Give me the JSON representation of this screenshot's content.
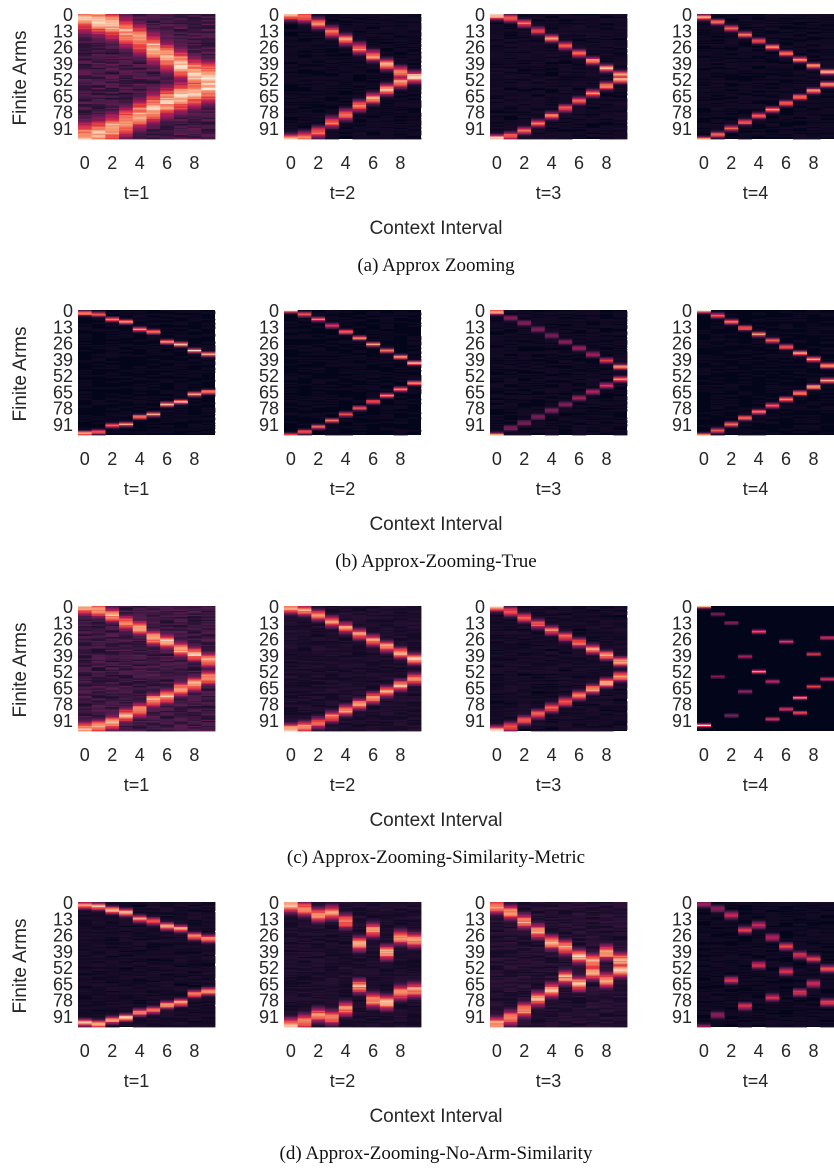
{
  "figure": {
    "ylabel": "Finite Arms",
    "xlabel": "Context Interval",
    "y_ticks": [
      "0",
      "13",
      "26",
      "39",
      "52",
      "65",
      "78",
      "91"
    ],
    "x_ticks": [
      "0",
      "2",
      "4",
      "6",
      "8"
    ],
    "panel_titles": [
      "t=1",
      "t=2",
      "t=3",
      "t=4"
    ],
    "colormap": [
      "#03051a",
      "#4c1d4b",
      "#a11a5b",
      "#e83f3f",
      "#f69c73",
      "#faebdd"
    ]
  },
  "chart_data": [
    {
      "type": "heatmap",
      "caption": "(a) Approx Zooming",
      "ylabel": "Finite Arms",
      "xlabel": "Context Interval",
      "n_rows": 100,
      "n_cols": 10,
      "y_tick_labels": [
        "0",
        "13",
        "26",
        "39",
        "52",
        "65",
        "78",
        "91"
      ],
      "x_tick_labels": [
        "0",
        "2",
        "4",
        "6",
        "8"
      ],
      "subplots": [
        {
          "title": "t=1",
          "peak_rows": [
            [
              2,
              98
            ],
            [
              5,
              96
            ],
            [
              8,
              92
            ],
            [
              14,
              86
            ],
            [
              20,
              80
            ],
            [
              27,
              75
            ],
            [
              34,
              70
            ],
            [
              40,
              66
            ],
            [
              47,
              62
            ],
            [
              50,
              58
            ]
          ],
          "peak_intensity": [
            0.85,
            0.85,
            0.85,
            0.8,
            0.8,
            0.85,
            0.85,
            0.9,
            0.9,
            0.9
          ],
          "width": 9,
          "background": 0.2
        },
        {
          "title": "t=2",
          "peak_rows": [
            [
              0,
              100
            ],
            [
              2,
              98
            ],
            [
              7,
              94
            ],
            [
              14,
              86
            ],
            [
              20,
              80
            ],
            [
              27,
              73
            ],
            [
              33,
              67
            ],
            [
              40,
              60
            ],
            [
              46,
              54
            ],
            [
              50,
              50
            ]
          ],
          "peak_intensity": [
            0.9,
            0.75,
            0.72,
            0.72,
            0.75,
            0.75,
            0.78,
            0.8,
            0.85,
            0.95
          ],
          "width": 3,
          "background": 0.04
        },
        {
          "title": "t=3",
          "peak_rows": [
            [
              1,
              99
            ],
            [
              3,
              97
            ],
            [
              7,
              93
            ],
            [
              13,
              87
            ],
            [
              19,
              81
            ],
            [
              25,
              75
            ],
            [
              31,
              69
            ],
            [
              37,
              63
            ],
            [
              43,
              57
            ],
            [
              48,
              52
            ]
          ],
          "peak_intensity": [
            0.95,
            0.7,
            0.65,
            0.65,
            0.7,
            0.7,
            0.7,
            0.75,
            0.8,
            0.85
          ],
          "width": 2,
          "background": 0.05
        },
        {
          "title": "t=4",
          "peak_rows": [
            [
              2,
              100
            ],
            [
              6,
              96
            ],
            [
              11,
              91
            ],
            [
              16,
              86
            ],
            [
              21,
              81
            ],
            [
              26,
              76
            ],
            [
              31,
              71
            ],
            [
              36,
              66
            ],
            [
              41,
              61
            ],
            [
              46,
              56
            ]
          ],
          "peak_intensity": [
            0.9,
            0.72,
            0.7,
            0.7,
            0.7,
            0.72,
            0.72,
            0.75,
            0.8,
            0.85
          ],
          "width": 1.5,
          "background": 0.04
        }
      ]
    },
    {
      "type": "heatmap",
      "caption": "(b) Approx-Zooming-True",
      "ylabel": "Finite Arms",
      "xlabel": "Context Interval",
      "n_rows": 100,
      "n_cols": 10,
      "y_tick_labels": [
        "0",
        "13",
        "26",
        "39",
        "52",
        "65",
        "78",
        "91"
      ],
      "x_tick_labels": [
        "0",
        "2",
        "4",
        "6",
        "8"
      ],
      "subplots": [
        {
          "title": "t=1",
          "peak_rows": [
            [
              2,
              98
            ],
            [
              3,
              97
            ],
            [
              7,
              92
            ],
            [
              9,
              91
            ],
            [
              15,
              85
            ],
            [
              17,
              83
            ],
            [
              25,
              75
            ],
            [
              27,
              73
            ],
            [
              32,
              67
            ],
            [
              35,
              65
            ]
          ],
          "peak_intensity": [
            0.85,
            0.75,
            0.7,
            0.75,
            0.8,
            0.85,
            0.85,
            0.85,
            0.85,
            0.85
          ],
          "width": 1.2,
          "background": 0.03
        },
        {
          "title": "t=2",
          "peak_rows": [
            [
              0,
              100
            ],
            [
              3,
              97
            ],
            [
              7,
              93
            ],
            [
              12,
              88
            ],
            [
              17,
              83
            ],
            [
              22,
              78
            ],
            [
              27,
              73
            ],
            [
              32,
              68
            ],
            [
              37,
              63
            ],
            [
              42,
              58
            ]
          ],
          "peak_intensity": [
            0.9,
            0.7,
            0.65,
            0.65,
            0.7,
            0.7,
            0.72,
            0.75,
            0.8,
            0.85
          ],
          "width": 1.2,
          "background": 0.03
        },
        {
          "title": "t=3",
          "peak_rows": [
            [
              1,
              100
            ],
            [
              6,
              94
            ],
            [
              10,
              90
            ],
            [
              15,
              85
            ],
            [
              20,
              80
            ],
            [
              25,
              75
            ],
            [
              30,
              70
            ],
            [
              35,
              65
            ],
            [
              40,
              60
            ],
            [
              45,
              55
            ]
          ],
          "peak_intensity": [
            0.95,
            0.35,
            0.35,
            0.35,
            0.35,
            0.35,
            0.4,
            0.45,
            0.55,
            0.75
          ],
          "width": 1.5,
          "background": 0.04
        },
        {
          "title": "t=4",
          "peak_rows": [
            [
              0,
              100
            ],
            [
              4,
              96
            ],
            [
              9,
              91
            ],
            [
              14,
              86
            ],
            [
              19,
              81
            ],
            [
              24,
              76
            ],
            [
              29,
              71
            ],
            [
              34,
              66
            ],
            [
              39,
              61
            ],
            [
              44,
              56
            ]
          ],
          "peak_intensity": [
            0.9,
            0.72,
            0.7,
            0.7,
            0.72,
            0.72,
            0.75,
            0.78,
            0.82,
            0.88
          ],
          "width": 1.3,
          "background": 0.03
        }
      ]
    },
    {
      "type": "heatmap",
      "caption": "(c) Approx-Zooming-Similarity-Metric",
      "ylabel": "Finite Arms",
      "xlabel": "Context Interval",
      "n_rows": 100,
      "n_cols": 10,
      "y_tick_labels": [
        "0",
        "13",
        "26",
        "39",
        "52",
        "65",
        "78",
        "91"
      ],
      "x_tick_labels": [
        "0",
        "2",
        "4",
        "6",
        "8"
      ],
      "subplots": [
        {
          "title": "t=1",
          "peak_rows": [
            [
              1,
              98
            ],
            [
              3,
              96
            ],
            [
              7,
              93
            ],
            [
              13,
              87
            ],
            [
              17,
              83
            ],
            [
              25,
              75
            ],
            [
              28,
              72
            ],
            [
              34,
              66
            ],
            [
              38,
              62
            ],
            [
              43,
              57
            ]
          ],
          "peak_intensity": [
            0.85,
            0.8,
            0.8,
            0.8,
            0.8,
            0.85,
            0.85,
            0.85,
            0.85,
            0.85
          ],
          "width": 4,
          "background": 0.18
        },
        {
          "title": "t=2",
          "peak_rows": [
            [
              1,
              98
            ],
            [
              3,
              96
            ],
            [
              7,
              93
            ],
            [
              12,
              88
            ],
            [
              17,
              83
            ],
            [
              22,
              78
            ],
            [
              27,
              73
            ],
            [
              32,
              68
            ],
            [
              37,
              63
            ],
            [
              42,
              58
            ]
          ],
          "peak_intensity": [
            0.9,
            0.8,
            0.75,
            0.75,
            0.78,
            0.78,
            0.8,
            0.82,
            0.85,
            0.85
          ],
          "width": 3,
          "background": 0.08
        },
        {
          "title": "t=3",
          "peak_rows": [
            [
              0,
              99
            ],
            [
              4,
              96
            ],
            [
              9,
              91
            ],
            [
              14,
              86
            ],
            [
              19,
              81
            ],
            [
              24,
              76
            ],
            [
              29,
              71
            ],
            [
              34,
              66
            ],
            [
              39,
              61
            ],
            [
              44,
              56
            ]
          ],
          "peak_intensity": [
            0.9,
            0.7,
            0.65,
            0.65,
            0.68,
            0.7,
            0.75,
            0.78,
            0.82,
            0.85
          ],
          "width": 2.5,
          "background": 0.06
        },
        {
          "title": "t=4",
          "peak_rows": [
            [
              0,
              95
            ],
            [
              6,
              56
            ],
            [
              13,
              87
            ],
            [
              40,
              68
            ],
            [
              20,
              52
            ],
            [
              60,
              90
            ],
            [
              28,
              82
            ],
            [
              73,
              85
            ],
            [
              38,
              64
            ],
            [
              25,
              58
            ]
          ],
          "peak_intensity": [
            0.95,
            0.3,
            0.35,
            0.45,
            0.75,
            0.55,
            0.6,
            0.7,
            0.6,
            0.55
          ],
          "width": 0.9,
          "background": 0.02
        }
      ]
    },
    {
      "type": "heatmap",
      "caption": "(d) Approx-Zooming-No-Arm-Similarity",
      "ylabel": "Finite Arms",
      "xlabel": "Context Interval",
      "n_rows": 100,
      "n_cols": 10,
      "y_tick_labels": [
        "0",
        "13",
        "26",
        "39",
        "52",
        "65",
        "78",
        "91"
      ],
      "x_tick_labels": [
        "0",
        "2",
        "4",
        "6",
        "8"
      ],
      "subplots": [
        {
          "title": "t=1",
          "peak_rows": [
            [
              2,
              96
            ],
            [
              3,
              97
            ],
            [
              6,
              94
            ],
            [
              8,
              92
            ],
            [
              13,
              88
            ],
            [
              15,
              86
            ],
            [
              19,
              82
            ],
            [
              21,
              80
            ],
            [
              27,
              73
            ],
            [
              29,
              71
            ]
          ],
          "peak_intensity": [
            0.85,
            0.85,
            0.85,
            0.85,
            0.75,
            0.7,
            0.8,
            0.8,
            0.8,
            0.85
          ],
          "width": 2,
          "background": 0.06
        },
        {
          "title": "t=2",
          "peak_rows": [
            [
              2,
              98
            ],
            [
              5,
              95
            ],
            [
              10,
              90
            ],
            [
              8,
              92
            ],
            [
              15,
              85
            ],
            [
              33,
              67
            ],
            [
              22,
              78
            ],
            [
              40,
              80
            ],
            [
              28,
              72
            ],
            [
              30,
              70
            ]
          ],
          "peak_intensity": [
            0.85,
            0.8,
            0.75,
            0.75,
            0.75,
            0.8,
            0.8,
            0.85,
            0.8,
            0.8
          ],
          "width": 4,
          "background": 0.08
        },
        {
          "title": "t=3",
          "peak_rows": [
            [
              3,
              97
            ],
            [
              8,
              92
            ],
            [
              15,
              86
            ],
            [
              23,
              77
            ],
            [
              32,
              70
            ],
            [
              36,
              60
            ],
            [
              43,
              65
            ],
            [
              47,
              56
            ],
            [
              40,
              62
            ],
            [
              46,
              54
            ]
          ],
          "peak_intensity": [
            0.85,
            0.8,
            0.8,
            0.8,
            0.8,
            0.8,
            0.85,
            0.85,
            0.85,
            0.85
          ],
          "width": 4,
          "background": 0.1
        },
        {
          "title": "t=4",
          "peak_rows": [
            [
              1,
              100
            ],
            [
              5,
              90
            ],
            [
              10,
              62
            ],
            [
              22,
              83
            ],
            [
              18,
              50
            ],
            [
              28,
              76
            ],
            [
              35,
              55
            ],
            [
              42,
              72
            ],
            [
              45,
              65
            ],
            [
              53,
              80
            ]
          ],
          "peak_intensity": [
            0.4,
            0.35,
            0.55,
            0.55,
            0.5,
            0.5,
            0.55,
            0.55,
            0.55,
            0.6
          ],
          "width": 2,
          "background": 0.04
        }
      ]
    }
  ]
}
